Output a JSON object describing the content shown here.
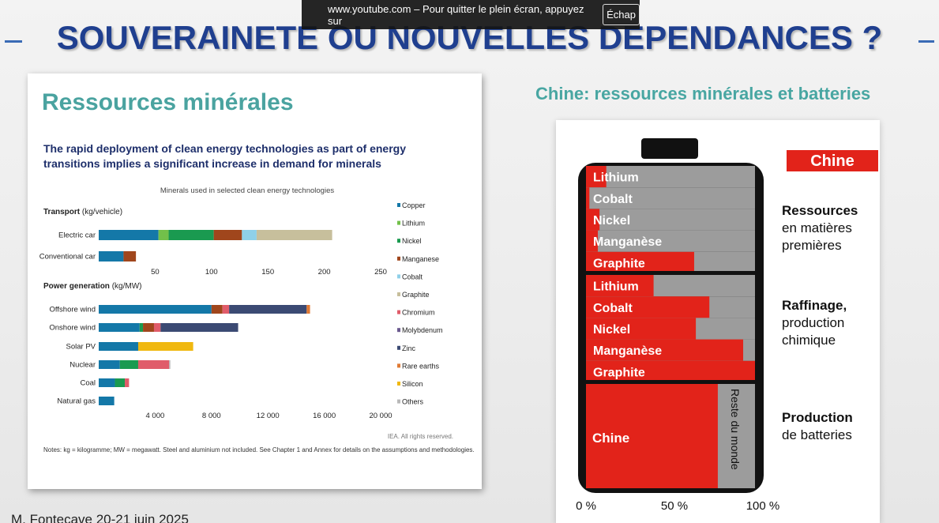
{
  "slide": {
    "title": "SOUVERAINETE OU NOUVELLES DEPENDANCES ?",
    "footer": "M. Fontecave 20-21 juin 2025"
  },
  "browser_banner": {
    "message": "www.youtube.com – Pour quitter le plein écran, appuyez sur",
    "key_label": "Échap"
  },
  "left_panel": {
    "heading": "Ressources minérales",
    "subtitle": "The rapid deployment of clean energy technologies as part of energy transitions implies a significant increase in demand for minerals",
    "note": "Notes: kg = kilogramme; MW = megawatt. Steel and aluminium not included. See Chapter 1 and Annex for details on the assumptions and methodologies.",
    "source": "IEA. All rights reserved."
  },
  "chart_data": [
    {
      "type": "bar",
      "orientation": "horizontal",
      "stacked": true,
      "title": "Minerals used in selected clean energy technologies",
      "legend_position": "right",
      "legend": [
        "Copper",
        "Lithium",
        "Nickel",
        "Manganese",
        "Cobalt",
        "Graphite",
        "Chromium",
        "Molybdenum",
        "Zinc",
        "Rare earths",
        "Silicon",
        "Others"
      ],
      "colors": {
        "Copper": "#1478a8",
        "Lithium": "#72c04a",
        "Nickel": "#1a9a50",
        "Manganese": "#a0461c",
        "Cobalt": "#8fd0e8",
        "Graphite": "#c7bf9c",
        "Chromium": "#e05c6a",
        "Molybdenum": "#6b5a8f",
        "Zinc": "#3b4a73",
        "Rare earths": "#e07a35",
        "Silicon": "#f0b810",
        "Others": "#b8b8b8"
      },
      "panels": [
        {
          "label": "Transport",
          "unit": "(kg/vehicle)",
          "xlim": [
            0,
            250
          ],
          "ticks": [
            "50",
            "100",
            "150",
            "200",
            "250"
          ],
          "categories": [
            "Electric car",
            "Conventional car"
          ],
          "series": [
            {
              "name": "Copper",
              "values": [
                53,
                22
              ]
            },
            {
              "name": "Lithium",
              "values": [
                9,
                0
              ]
            },
            {
              "name": "Nickel",
              "values": [
                40,
                0
              ]
            },
            {
              "name": "Manganese",
              "values": [
                25,
                11
              ]
            },
            {
              "name": "Cobalt",
              "values": [
                13,
                0
              ]
            },
            {
              "name": "Graphite",
              "values": [
                67,
                0
              ]
            }
          ]
        },
        {
          "label": "Power generation",
          "unit": "(kg/MW)",
          "xlim": [
            0,
            20000
          ],
          "ticks": [
            "4 000",
            "8 000",
            "12 000",
            "16 000",
            "20 000"
          ],
          "categories": [
            "Offshore wind",
            "Onshore wind",
            "Solar PV",
            "Nuclear",
            "Coal",
            "Natural gas"
          ],
          "series": [
            {
              "name": "Copper",
              "values": [
                8000,
                2900,
                2800,
                1500,
                1150,
                1100
              ]
            },
            {
              "name": "Nickel",
              "values": [
                0,
                240,
                0,
                1300,
                700,
                0
              ]
            },
            {
              "name": "Manganese",
              "values": [
                780,
                780,
                0,
                0,
                0,
                0
              ]
            },
            {
              "name": "Chromium",
              "values": [
                470,
                470,
                0,
                2200,
                300,
                0
              ]
            },
            {
              "name": "Zinc",
              "values": [
                5500,
                5500,
                0,
                0,
                0,
                0
              ]
            },
            {
              "name": "Rare earths",
              "values": [
                240,
                0,
                0,
                0,
                0,
                0
              ]
            },
            {
              "name": "Silicon",
              "values": [
                0,
                0,
                3900,
                0,
                0,
                0
              ]
            },
            {
              "name": "Others",
              "values": [
                0,
                0,
                0,
                80,
                0,
                0
              ]
            }
          ]
        }
      ]
    },
    {
      "type": "bar",
      "orientation": "horizontal",
      "stacked": true,
      "title": "Chine: ressources minérales et batteries",
      "legend": [
        "Chine"
      ],
      "colors": {
        "Chine": "#e2231a",
        "Reste du monde": "#9c9c9c"
      },
      "xlim": [
        0,
        100
      ],
      "x_ticks": [
        "0 %",
        "50 %",
        "100 %"
      ],
      "groups": [
        {
          "label": "Ressources",
          "sublabel": "en matières premières",
          "categories": [
            "Lithium",
            "Cobalt",
            "Nickel",
            "Manganèse",
            "Graphite"
          ],
          "chine_share": [
            12,
            2,
            8,
            7,
            64
          ]
        },
        {
          "label": "Raffinage,",
          "sublabel": "production chimique",
          "categories": [
            "Lithium",
            "Cobalt",
            "Nickel",
            "Manganèse",
            "Graphite"
          ],
          "chine_share": [
            40,
            73,
            65,
            93,
            100
          ]
        },
        {
          "label": "Production",
          "sublabel": "de batteries",
          "categories": [
            "Chine"
          ],
          "chine_share": [
            78
          ],
          "rest_label": "Reste du monde"
        }
      ]
    }
  ]
}
